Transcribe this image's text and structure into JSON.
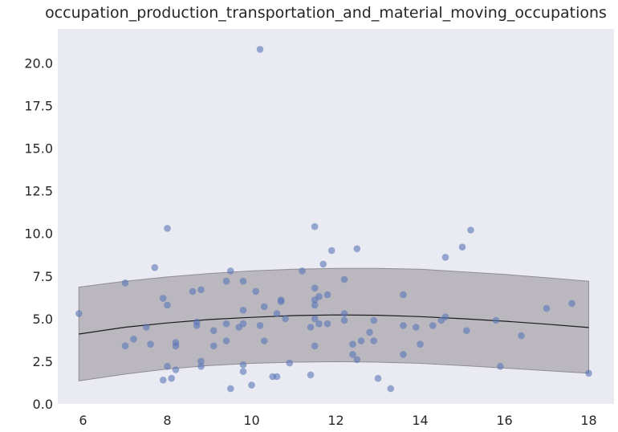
{
  "chart_data": {
    "type": "scatter",
    "title": "occupation_production_transportation_and_material_moving_occupations",
    "xlabel": "",
    "ylabel": "",
    "xlim": [
      5.4,
      18.6
    ],
    "ylim": [
      0,
      22
    ],
    "x_ticks": [
      6,
      8,
      10,
      12,
      14,
      16,
      18
    ],
    "y_ticks": [
      0.0,
      2.5,
      5.0,
      7.5,
      10.0,
      12.5,
      15.0,
      17.5,
      20.0
    ],
    "grid": false,
    "legend": "none",
    "colors": {
      "plot_background": "#eaeaf2",
      "points": "#5975b8",
      "fit_line": "#1a1a1a",
      "band": "#a5a3a8"
    },
    "series": [
      {
        "type": "scatter",
        "points": [
          [
            5.9,
            5.3
          ],
          [
            7.0,
            7.1
          ],
          [
            7.0,
            3.4
          ],
          [
            7.2,
            3.8
          ],
          [
            7.5,
            4.5
          ],
          [
            7.6,
            3.5
          ],
          [
            7.7,
            8.0
          ],
          [
            7.9,
            6.2
          ],
          [
            7.9,
            1.4
          ],
          [
            8.0,
            10.3
          ],
          [
            8.0,
            5.8
          ],
          [
            8.0,
            2.2
          ],
          [
            8.1,
            1.5
          ],
          [
            8.2,
            3.6
          ],
          [
            8.2,
            3.4
          ],
          [
            8.2,
            2.0
          ],
          [
            8.6,
            6.6
          ],
          [
            8.7,
            4.8
          ],
          [
            8.7,
            4.6
          ],
          [
            8.8,
            6.7
          ],
          [
            8.8,
            2.5
          ],
          [
            8.8,
            2.2
          ],
          [
            9.1,
            4.3
          ],
          [
            9.1,
            3.4
          ],
          [
            9.4,
            7.2
          ],
          [
            9.4,
            4.7
          ],
          [
            9.4,
            3.7
          ],
          [
            9.5,
            7.8
          ],
          [
            9.5,
            0.9
          ],
          [
            9.7,
            4.5
          ],
          [
            9.8,
            7.2
          ],
          [
            9.8,
            5.5
          ],
          [
            9.8,
            4.7
          ],
          [
            9.8,
            2.3
          ],
          [
            9.8,
            1.9
          ],
          [
            10.0,
            1.1
          ],
          [
            10.1,
            6.6
          ],
          [
            10.2,
            20.8
          ],
          [
            10.2,
            4.6
          ],
          [
            10.3,
            5.7
          ],
          [
            10.3,
            3.7
          ],
          [
            10.5,
            1.6
          ],
          [
            10.6,
            5.3
          ],
          [
            10.6,
            1.6
          ],
          [
            10.7,
            6.1
          ],
          [
            10.7,
            6.0
          ],
          [
            10.8,
            5.0
          ],
          [
            10.9,
            2.4
          ],
          [
            11.2,
            7.8
          ],
          [
            11.4,
            4.5
          ],
          [
            11.4,
            1.7
          ],
          [
            11.5,
            10.4
          ],
          [
            11.5,
            6.8
          ],
          [
            11.5,
            6.1
          ],
          [
            11.5,
            5.8
          ],
          [
            11.5,
            5.0
          ],
          [
            11.5,
            3.4
          ],
          [
            11.6,
            6.3
          ],
          [
            11.6,
            4.7
          ],
          [
            11.7,
            8.2
          ],
          [
            11.8,
            6.4
          ],
          [
            11.8,
            4.7
          ],
          [
            11.9,
            9.0
          ],
          [
            12.2,
            7.3
          ],
          [
            12.2,
            5.3
          ],
          [
            12.2,
            4.9
          ],
          [
            12.4,
            3.5
          ],
          [
            12.4,
            2.9
          ],
          [
            12.5,
            9.1
          ],
          [
            12.5,
            2.6
          ],
          [
            12.6,
            3.7
          ],
          [
            12.8,
            4.2
          ],
          [
            12.9,
            4.9
          ],
          [
            12.9,
            3.7
          ],
          [
            13.0,
            1.5
          ],
          [
            13.3,
            0.9
          ],
          [
            13.6,
            6.4
          ],
          [
            13.6,
            4.6
          ],
          [
            13.6,
            2.9
          ],
          [
            13.9,
            4.5
          ],
          [
            14.0,
            3.5
          ],
          [
            14.3,
            4.6
          ],
          [
            14.5,
            4.9
          ],
          [
            14.6,
            8.6
          ],
          [
            14.6,
            5.1
          ],
          [
            15.0,
            9.2
          ],
          [
            15.1,
            4.3
          ],
          [
            15.2,
            10.2
          ],
          [
            15.8,
            4.9
          ],
          [
            15.9,
            2.2
          ],
          [
            16.4,
            4.0
          ],
          [
            17.0,
            5.6
          ],
          [
            17.6,
            5.9
          ],
          [
            18.0,
            1.8
          ]
        ]
      },
      {
        "type": "line",
        "x": [
          5.9,
          7.0,
          8.0,
          9.0,
          10.0,
          11.0,
          12.0,
          13.0,
          14.0,
          15.0,
          16.0,
          17.0,
          18.0
        ],
        "y": [
          4.1,
          4.5,
          4.75,
          4.95,
          5.08,
          5.18,
          5.22,
          5.2,
          5.12,
          5.0,
          4.85,
          4.68,
          4.48
        ]
      },
      {
        "type": "band",
        "x": [
          5.9,
          7.0,
          8.0,
          9.0,
          10.0,
          11.0,
          12.0,
          13.0,
          14.0,
          15.0,
          16.0,
          17.0,
          18.0
        ],
        "upper": [
          6.85,
          7.2,
          7.45,
          7.65,
          7.8,
          7.9,
          7.95,
          7.95,
          7.9,
          7.75,
          7.6,
          7.4,
          7.2
        ],
        "lower": [
          1.35,
          1.75,
          2.05,
          2.25,
          2.38,
          2.45,
          2.48,
          2.45,
          2.38,
          2.25,
          2.1,
          1.95,
          1.8
        ]
      }
    ]
  }
}
